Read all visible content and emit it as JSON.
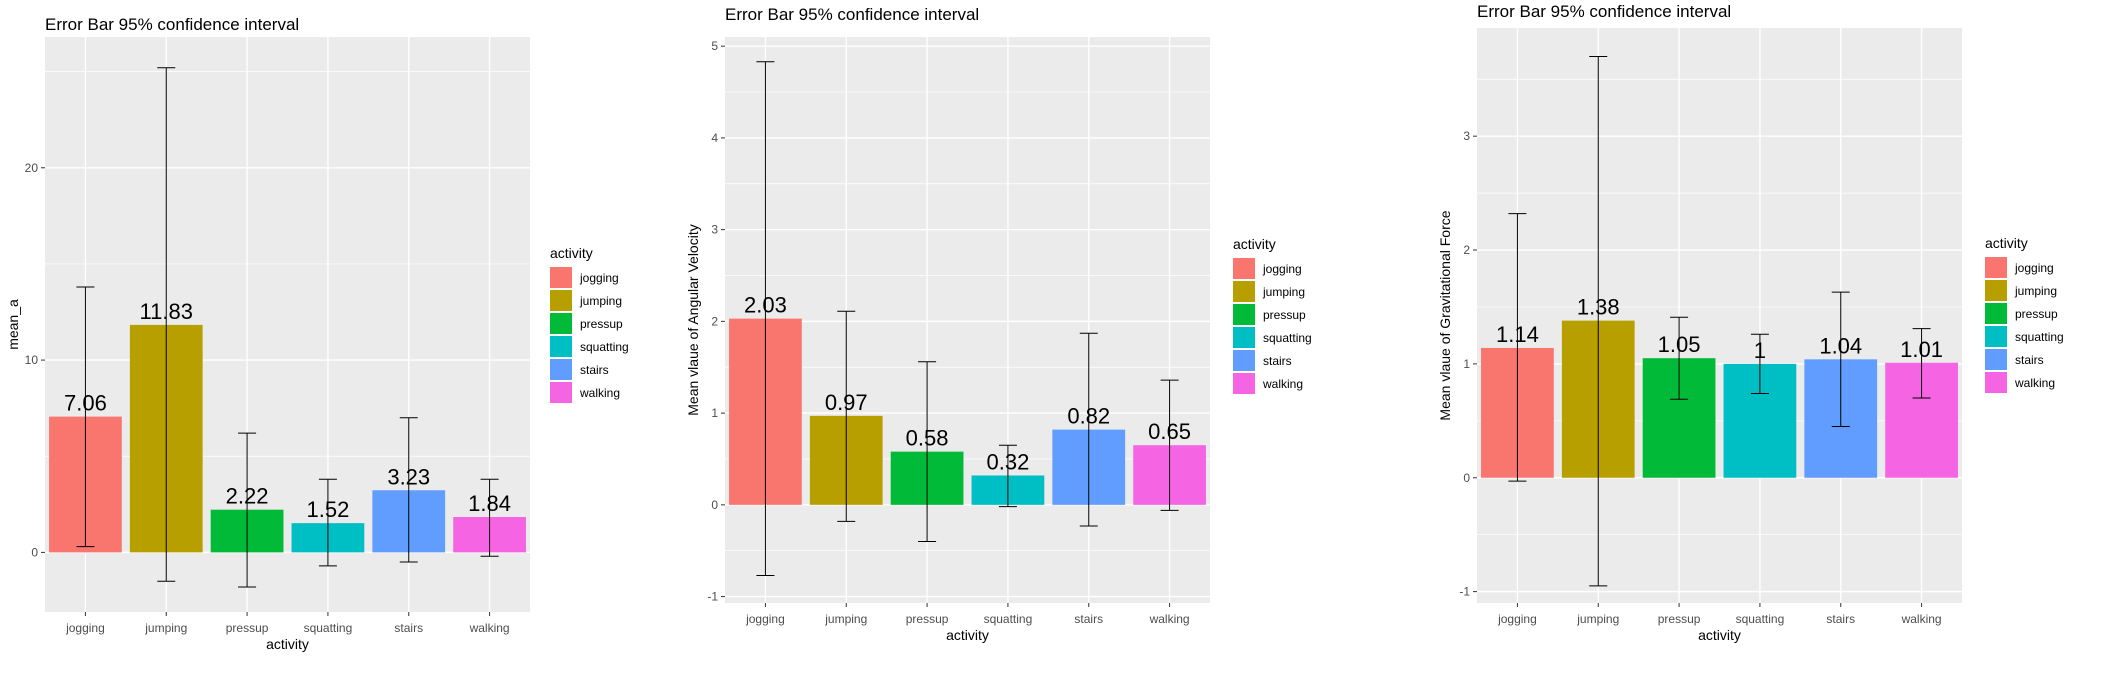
{
  "chart_data": [
    {
      "type": "bar",
      "title": "Error Bar 95% confidence interval",
      "xlabel": "activity",
      "ylabel": "mean_a",
      "categories": [
        "jogging",
        "jumping",
        "pressup",
        "squatting",
        "stairs",
        "walking"
      ],
      "values": [
        7.06,
        11.83,
        2.22,
        1.52,
        3.23,
        1.84
      ],
      "value_labels": [
        "7.06",
        "11.83",
        "2.22",
        "1.52",
        "3.23",
        "1.84"
      ],
      "error_low": [
        0.3,
        -1.5,
        -1.8,
        -0.7,
        -0.5,
        -0.2
      ],
      "error_high": [
        13.8,
        25.2,
        6.2,
        3.8,
        7.0,
        3.8
      ],
      "ylim": [
        -3.1,
        26.8
      ],
      "yticks": [
        0,
        10,
        20
      ],
      "ytick_labels": [
        "0",
        "10",
        "20"
      ],
      "legend_title": "activity",
      "legend_position": "right",
      "grid": true
    },
    {
      "type": "bar",
      "title": "Error Bar 95% confidence interval",
      "xlabel": "activity",
      "ylabel": "Mean vlaue of Angular Velocity",
      "categories": [
        "jogging",
        "jumping",
        "pressup",
        "squatting",
        "stairs",
        "walking"
      ],
      "values": [
        2.03,
        0.97,
        0.58,
        0.32,
        0.82,
        0.65
      ],
      "value_labels": [
        "2.03",
        "0.97",
        "0.58",
        "0.32",
        "0.82",
        "0.65"
      ],
      "error_low": [
        -0.77,
        -0.18,
        -0.4,
        -0.02,
        -0.23,
        -0.06
      ],
      "error_high": [
        4.83,
        2.11,
        1.56,
        0.65,
        1.87,
        1.36
      ],
      "ylim": [
        -1.07,
        5.1
      ],
      "yticks": [
        -1,
        0,
        1,
        2,
        3,
        4,
        5
      ],
      "ytick_labels": [
        "-1",
        "0",
        "1",
        "2",
        "3",
        "4",
        "5"
      ],
      "legend_title": "activity",
      "legend_position": "right",
      "grid": true
    },
    {
      "type": "bar",
      "title": "Error Bar 95% confidence interval",
      "xlabel": "activity",
      "ylabel": "Mean vlaue of Gravitational Force",
      "categories": [
        "jogging",
        "jumping",
        "pressup",
        "squatting",
        "stairs",
        "walking"
      ],
      "values": [
        1.14,
        1.38,
        1.05,
        1.0,
        1.04,
        1.01
      ],
      "value_labels": [
        "1.14",
        "1.38",
        "1.05",
        "1",
        "1.04",
        "1.01"
      ],
      "error_low": [
        -0.03,
        -0.95,
        0.69,
        0.74,
        0.45,
        0.7
      ],
      "error_high": [
        2.32,
        3.7,
        1.41,
        1.26,
        1.63,
        1.31
      ],
      "ylim": [
        -1.1,
        3.95
      ],
      "yticks": [
        -1,
        0,
        1,
        2,
        3
      ],
      "ytick_labels": [
        "-1",
        "0",
        "1",
        "2",
        "3"
      ],
      "legend_title": "activity",
      "legend_position": "right",
      "grid": true
    }
  ],
  "colors": {
    "jogging": "#F8766D",
    "jumping": "#B79F00",
    "pressup": "#00BA38",
    "squatting": "#00BFC4",
    "stairs": "#619CFF",
    "walking": "#F564E3",
    "panel_background": "#EBEBEB",
    "grid": "#FFFFFF"
  }
}
